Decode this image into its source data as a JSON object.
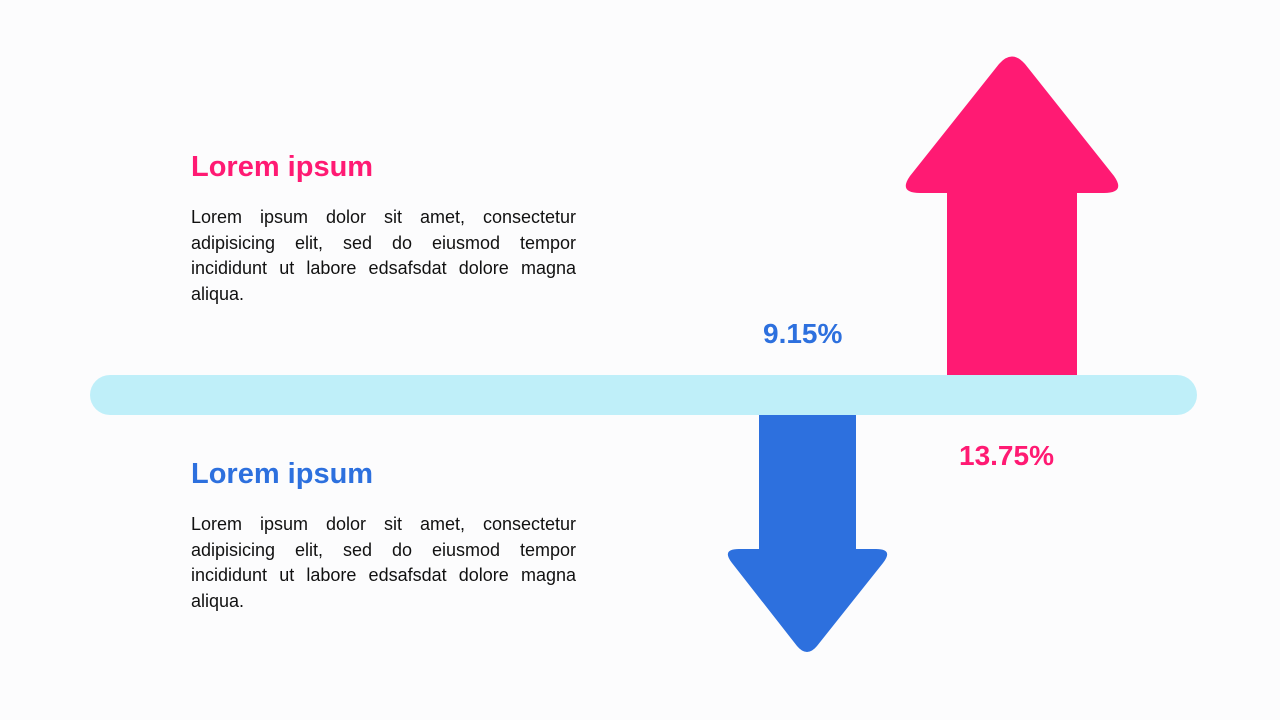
{
  "items": [
    {
      "title": "Lorem ipsum",
      "body": "Lorem ipsum dolor sit amet, consectetur adipisicing elit, sed do eiusmod tempor incididunt ut labore edsafsdat dolore magna aliqua.",
      "value": "13.75%",
      "direction": "up",
      "color": "#ff1a73"
    },
    {
      "title": "Lorem ipsum",
      "body": "Lorem ipsum dolor sit amet, consectetur adipisicing elit, sed do eiusmod tempor incididunt ut labore edsafsdat dolore magna aliqua.",
      "value": "9.15%",
      "direction": "down",
      "color": "#2d70de"
    }
  ],
  "bar_color": "#bfeff9"
}
